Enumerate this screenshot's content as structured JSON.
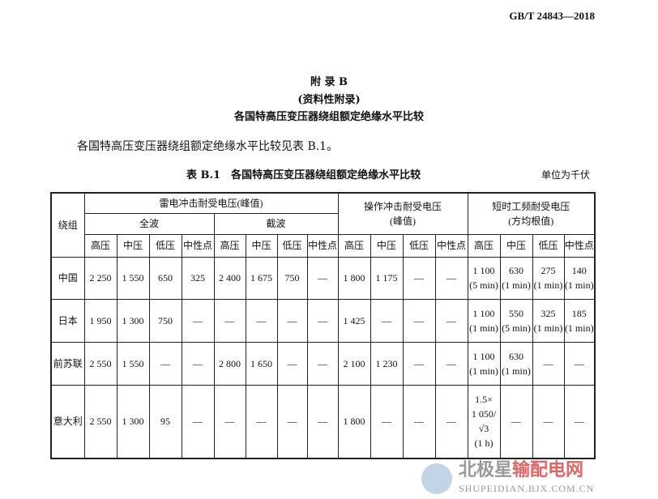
{
  "header": {
    "standard_no": "GB/T 24843—2018"
  },
  "appendix": {
    "title": "附 录 B",
    "nature": "(资料性附录)",
    "subtitle": "各国特高压变压器绕组额定绝缘水平比较"
  },
  "intro": "各国特高压变压器绕组额定绝缘水平比较见表 B.1。",
  "table": {
    "caption": "表 B.1　各国特高压变压器绕组额定绝缘水平比较",
    "unit": "单位为千伏",
    "col_winding": "绕组",
    "group_lightning": "雷电冲击耐受电压(峰值)",
    "group_full": "全波",
    "group_chopped": "截波",
    "group_switching": "操作冲击耐受电压\n(峰值)",
    "group_ac": "短时工频耐受电压\n(方均根值)",
    "sub": [
      "高压",
      "中压",
      "低压",
      "中性点",
      "高压",
      "中压",
      "低压",
      "中性点",
      "高压",
      "中压",
      "低压",
      "中性点",
      "高压",
      "中压",
      "低压",
      "中性点"
    ],
    "rows": [
      {
        "name": "中国",
        "cells": [
          "2 250",
          "1 550",
          "650",
          "325",
          "2 400",
          "1 675",
          "750",
          "—",
          "1 800",
          "1 175",
          "—",
          "—",
          "1 100\n(5 min)",
          "630\n(1 min)",
          "275\n(1 min)",
          "140\n(1 min)"
        ]
      },
      {
        "name": "日本",
        "cells": [
          "1 950",
          "1 300",
          "750",
          "—",
          "—",
          "—",
          "—",
          "—",
          "1 425",
          "—",
          "—",
          "—",
          "1 100\n(1 min)",
          "550\n(5 min)",
          "325\n(1 min)",
          "185\n(1 min)"
        ]
      },
      {
        "name": "前苏联",
        "cells": [
          "2 550",
          "1 550",
          "—",
          "—",
          "2 800",
          "1 650",
          "—",
          "—",
          "2 100",
          "1 230",
          "—",
          "—",
          "1 100\n(1 min)",
          "630\n(1 min)",
          "—",
          "—"
        ]
      },
      {
        "name": "意大利",
        "cells": [
          "2 550",
          "1 300",
          "95",
          "—",
          "—",
          "—",
          "—",
          "—",
          "1 800",
          "—",
          "—",
          "—",
          "1.5×\n1 050/\n√3\n(1 h)",
          "—",
          "—",
          "—"
        ]
      }
    ]
  },
  "watermark": {
    "cn_gray": "北极星",
    "cn_red": "输配电网",
    "en": "SHUPEIDIAN.BJX.COM.CN"
  }
}
